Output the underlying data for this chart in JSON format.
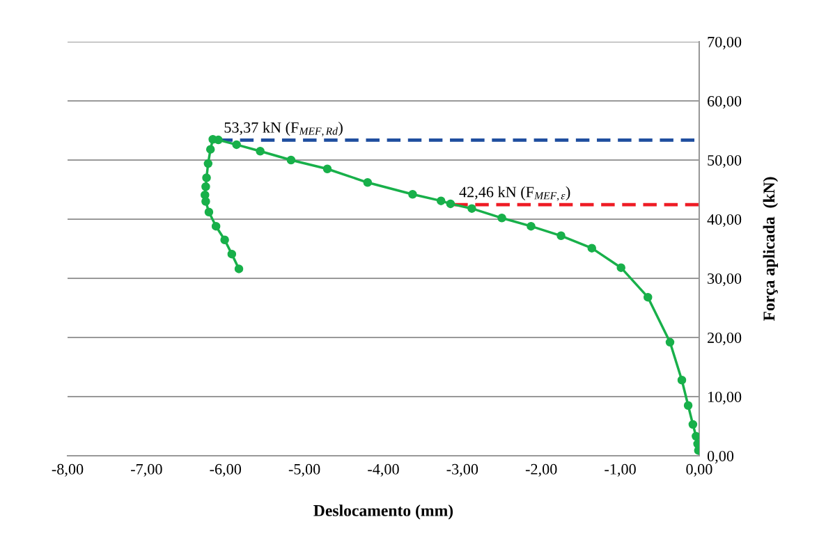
{
  "chart_data": {
    "type": "line",
    "xlabel": "Deslocamento (mm)",
    "ylabel": "Força aplicada  (kN)",
    "x": [
      -0.01,
      -0.02,
      -0.04,
      -0.08,
      -0.14,
      -0.22,
      -0.37,
      -0.65,
      -0.99,
      -1.36,
      -1.75,
      -2.13,
      -2.5,
      -2.88,
      -3.15,
      -3.27,
      -3.63,
      -4.2,
      -4.71,
      -5.17,
      -5.56,
      -5.86,
      -6.09,
      -6.16,
      -6.19,
      -6.22,
      -6.24,
      -6.25,
      -6.26,
      -6.25,
      -6.21,
      -6.12,
      -6.01,
      -5.92,
      -5.83
    ],
    "series": [
      {
        "color": "#18b04a",
        "marker": "circle",
        "values": [
          0.9,
          2.0,
          3.3,
          5.3,
          8.5,
          12.8,
          19.2,
          26.8,
          31.8,
          35.1,
          37.2,
          38.8,
          40.2,
          41.8,
          42.6,
          43.1,
          44.2,
          46.2,
          48.5,
          50.0,
          51.5,
          52.6,
          53.4,
          53.5,
          51.8,
          49.4,
          47.0,
          45.5,
          44.1,
          43.0,
          41.2,
          38.8,
          36.5,
          34.1,
          31.6
        ]
      }
    ],
    "xlim": [
      -8,
      0
    ],
    "xticks": [
      {
        "value": -8,
        "label": "-8,00"
      },
      {
        "value": -7,
        "label": "-7,00"
      },
      {
        "value": -6,
        "label": "-6,00"
      },
      {
        "value": -5,
        "label": "-5,00"
      },
      {
        "value": -4,
        "label": "-4,00"
      },
      {
        "value": -3,
        "label": "-3,00"
      },
      {
        "value": -2,
        "label": "-2,00"
      },
      {
        "value": -1,
        "label": "-1,00"
      },
      {
        "value": 0,
        "label": "0,00"
      }
    ],
    "ylim": [
      0,
      70
    ],
    "yticks": [
      {
        "value": 0,
        "label": "0,00"
      },
      {
        "value": 10,
        "label": "10,00"
      },
      {
        "value": 20,
        "label": "20,00"
      },
      {
        "value": 30,
        "label": "30,00"
      },
      {
        "value": 40,
        "label": "40,00"
      },
      {
        "value": 50,
        "label": "50,00"
      },
      {
        "value": 60,
        "label": "60,00"
      },
      {
        "value": 70,
        "label": "70,00"
      }
    ],
    "grid": "y",
    "legend": false,
    "ref_lines": [
      {
        "axis": "y",
        "value": 53.37,
        "label": "53,37 kN (F$_{MEF,Rd}$)",
        "color": "#1f4e9f",
        "line_style": "dashed"
      },
      {
        "axis": "y",
        "value": 42.46,
        "label": "42,46 kN (F$_{MEF,ε}$)",
        "color": "#ee1c25",
        "line_style": "dashed"
      }
    ]
  }
}
